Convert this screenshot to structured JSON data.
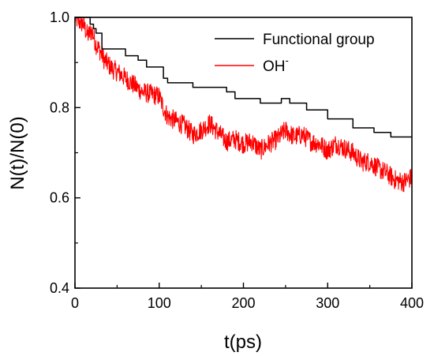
{
  "chart_data": {
    "type": "line",
    "xlabel": "t(ps)",
    "ylabel": "N(t)/N(0)",
    "xlim": [
      0,
      400
    ],
    "ylim": [
      0.4,
      1.0
    ],
    "x_ticks": [
      "0",
      "100",
      "200",
      "300",
      "400"
    ],
    "y_ticks": [
      "0.4",
      "0.6",
      "0.8",
      "1.0"
    ],
    "x_tick_values": [
      0,
      100,
      200,
      300,
      400
    ],
    "y_tick_values": [
      0.4,
      0.6,
      0.8,
      1.0
    ],
    "grid": false,
    "legend_position": "top-right",
    "series": [
      {
        "name": "Functional group",
        "color": "#000000",
        "style": "step",
        "x": [
          0,
          18,
          18,
          22,
          22,
          25,
          25,
          32,
          32,
          60,
          60,
          75,
          75,
          85,
          85,
          105,
          105,
          110,
          110,
          140,
          140,
          180,
          180,
          190,
          190,
          220,
          220,
          245,
          245,
          255,
          255,
          275,
          275,
          300,
          300,
          330,
          330,
          355,
          355,
          375,
          375,
          400
        ],
        "y": [
          1.0,
          1.0,
          0.985,
          0.985,
          0.975,
          0.975,
          0.965,
          0.965,
          0.93,
          0.93,
          0.915,
          0.915,
          0.905,
          0.905,
          0.89,
          0.89,
          0.865,
          0.865,
          0.855,
          0.855,
          0.845,
          0.845,
          0.835,
          0.835,
          0.82,
          0.82,
          0.81,
          0.81,
          0.82,
          0.82,
          0.81,
          0.81,
          0.795,
          0.795,
          0.775,
          0.775,
          0.755,
          0.755,
          0.745,
          0.745,
          0.735,
          0.735
        ]
      },
      {
        "name": "OH-",
        "legend_label": "OH",
        "legend_superscript": "-",
        "color": "#ff0000",
        "style": "noisy",
        "noise_amplitude": 0.022,
        "x": [
          0,
          5,
          10,
          15,
          20,
          25,
          30,
          35,
          40,
          45,
          50,
          60,
          70,
          80,
          90,
          100,
          105,
          110,
          115,
          120,
          130,
          140,
          150,
          160,
          170,
          180,
          190,
          200,
          210,
          220,
          230,
          240,
          250,
          260,
          270,
          280,
          290,
          300,
          310,
          320,
          330,
          340,
          350,
          360,
          370,
          380,
          390,
          400
        ],
        "y": [
          1.0,
          0.99,
          0.985,
          0.96,
          0.97,
          0.94,
          0.925,
          0.905,
          0.895,
          0.885,
          0.88,
          0.865,
          0.85,
          0.835,
          0.83,
          0.825,
          0.8,
          0.78,
          0.775,
          0.77,
          0.76,
          0.74,
          0.75,
          0.765,
          0.745,
          0.725,
          0.73,
          0.72,
          0.725,
          0.705,
          0.72,
          0.73,
          0.75,
          0.735,
          0.74,
          0.725,
          0.72,
          0.705,
          0.72,
          0.71,
          0.7,
          0.68,
          0.68,
          0.665,
          0.655,
          0.64,
          0.635,
          0.645
        ]
      }
    ]
  }
}
